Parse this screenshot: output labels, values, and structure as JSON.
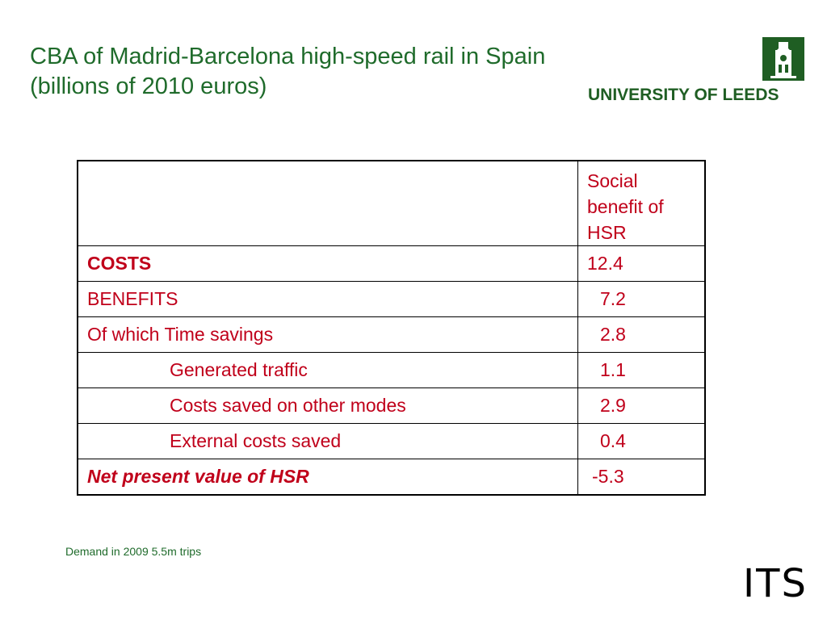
{
  "slide": {
    "title": "CBA of Madrid-Barcelona high-speed rail in Spain (billions of 2010 euros)",
    "note": "Demand in 2009  5.5m trips"
  },
  "logo": {
    "text": "UNIVERSITY OF LEEDS",
    "icon": "university-crest-icon",
    "color": "#1f5e23"
  },
  "its_logo": {
    "text": "ITS"
  },
  "table": {
    "header": [
      "",
      "Social benefit of HSR"
    ],
    "rows": [
      {
        "label": "COSTS",
        "value": "12.4"
      },
      {
        "label": "BENEFITS",
        "value": "7.2"
      },
      {
        "label": "Of which Time savings",
        "value": "2.8"
      },
      {
        "label": "Generated traffic",
        "value": "1.1"
      },
      {
        "label": "Costs saved on other modes",
        "value": "2.9"
      },
      {
        "label": "External costs saved",
        "value": "0.4"
      },
      {
        "label": "Net present value of HSR",
        "value": "-5.3"
      }
    ]
  },
  "colors": {
    "title": "#1f6b2b",
    "table_text": "#c0001a"
  }
}
